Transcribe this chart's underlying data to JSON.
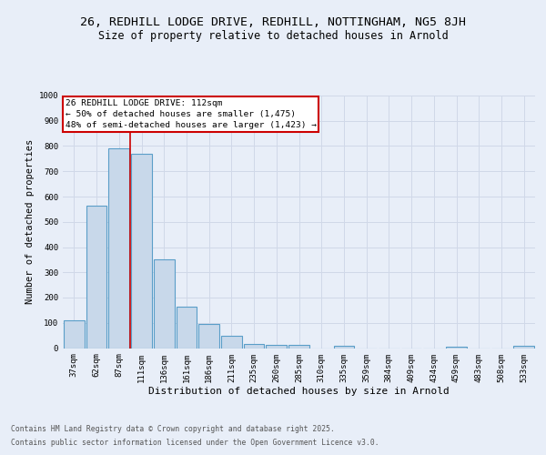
{
  "title1": "26, REDHILL LODGE DRIVE, REDHILL, NOTTINGHAM, NG5 8JH",
  "title2": "Size of property relative to detached houses in Arnold",
  "xlabel": "Distribution of detached houses by size in Arnold",
  "ylabel": "Number of detached properties",
  "bins": [
    "37sqm",
    "62sqm",
    "87sqm",
    "111sqm",
    "136sqm",
    "161sqm",
    "186sqm",
    "211sqm",
    "235sqm",
    "260sqm",
    "285sqm",
    "310sqm",
    "335sqm",
    "359sqm",
    "384sqm",
    "409sqm",
    "434sqm",
    "459sqm",
    "483sqm",
    "508sqm",
    "533sqm"
  ],
  "values": [
    110,
    565,
    790,
    770,
    350,
    165,
    95,
    50,
    15,
    11,
    11,
    0,
    8,
    0,
    0,
    0,
    0,
    7,
    0,
    0,
    8
  ],
  "bar_color": "#c8d8ea",
  "bar_edge_color": "#5a9ec8",
  "bar_linewidth": 0.8,
  "grid_color": "#d0d8e8",
  "background_color": "#e8eef8",
  "annotation_text": "26 REDHILL LODGE DRIVE: 112sqm\n← 50% of detached houses are smaller (1,475)\n48% of semi-detached houses are larger (1,423) →",
  "annotation_box_color": "#ffffff",
  "annotation_box_edge": "#cc0000",
  "redline_x": 2.5,
  "ylim": [
    0,
    1000
  ],
  "yticks": [
    0,
    100,
    200,
    300,
    400,
    500,
    600,
    700,
    800,
    900,
    1000
  ],
  "footer1": "Contains HM Land Registry data © Crown copyright and database right 2025.",
  "footer2": "Contains public sector information licensed under the Open Government Licence v3.0.",
  "title1_fontsize": 9.5,
  "title2_fontsize": 8.5,
  "tick_fontsize": 6.5,
  "label_fontsize": 8,
  "annotation_fontsize": 6.8,
  "footer_fontsize": 5.8,
  "ylabel_fontsize": 7.5
}
